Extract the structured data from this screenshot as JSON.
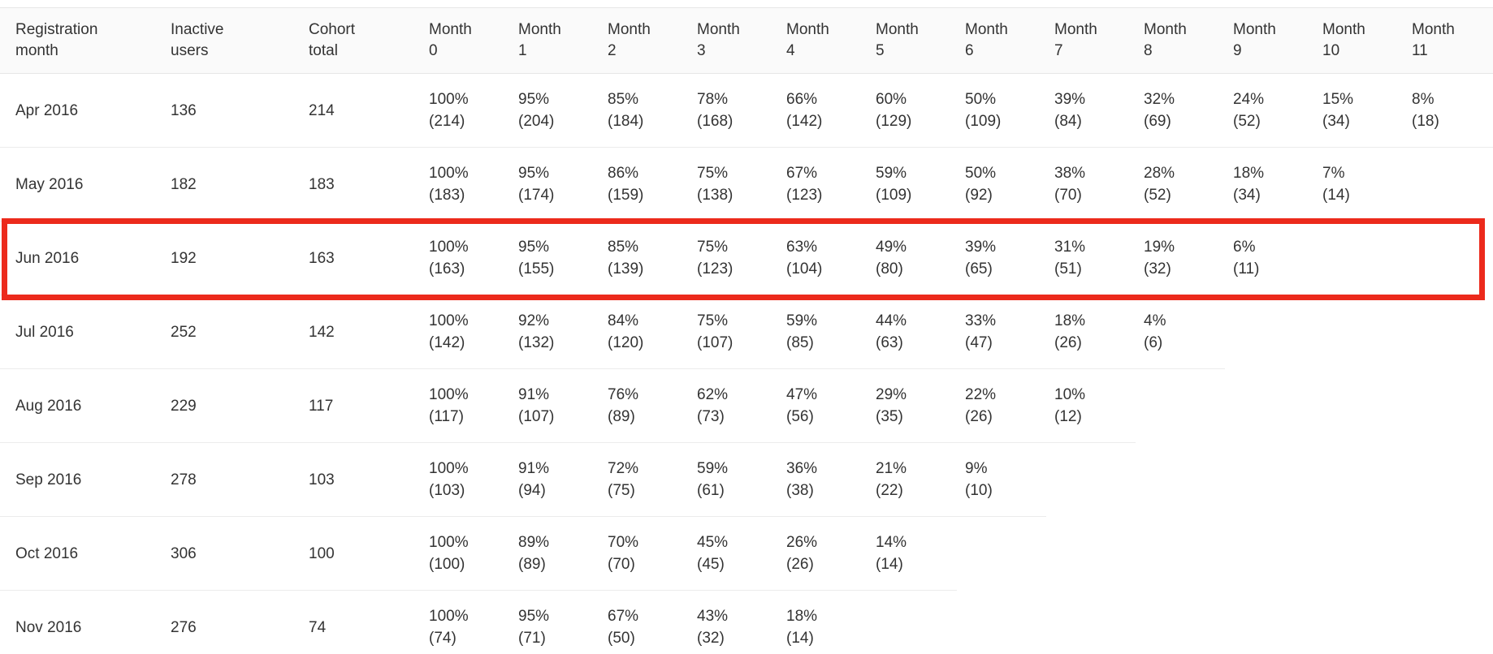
{
  "chart_data": {
    "type": "table",
    "columns": [
      "Registration month",
      "Inactive users",
      "Cohort total",
      "Month 0",
      "Month 1",
      "Month 2",
      "Month 3",
      "Month 4",
      "Month 5",
      "Month 6",
      "Month 7",
      "Month 8",
      "Month 9",
      "Month 10",
      "Month 11"
    ],
    "month_column_count": 12,
    "highlighted_row": "Jun 2016",
    "rows": [
      {
        "registration_month": "Apr 2016",
        "inactive_users": "136",
        "cohort_total": "214",
        "highlighted": false,
        "retention": [
          {
            "pct": "100%",
            "n": "(214)"
          },
          {
            "pct": "95%",
            "n": "(204)"
          },
          {
            "pct": "85%",
            "n": "(184)"
          },
          {
            "pct": "78%",
            "n": "(168)"
          },
          {
            "pct": "66%",
            "n": "(142)"
          },
          {
            "pct": "60%",
            "n": "(129)"
          },
          {
            "pct": "50%",
            "n": "(109)"
          },
          {
            "pct": "39%",
            "n": "(84)"
          },
          {
            "pct": "32%",
            "n": "(69)"
          },
          {
            "pct": "24%",
            "n": "(52)"
          },
          {
            "pct": "15%",
            "n": "(34)"
          },
          {
            "pct": "8%",
            "n": "(18)"
          }
        ]
      },
      {
        "registration_month": "May 2016",
        "inactive_users": "182",
        "cohort_total": "183",
        "highlighted": false,
        "retention": [
          {
            "pct": "100%",
            "n": "(183)"
          },
          {
            "pct": "95%",
            "n": "(174)"
          },
          {
            "pct": "86%",
            "n": "(159)"
          },
          {
            "pct": "75%",
            "n": "(138)"
          },
          {
            "pct": "67%",
            "n": "(123)"
          },
          {
            "pct": "59%",
            "n": "(109)"
          },
          {
            "pct": "50%",
            "n": "(92)"
          },
          {
            "pct": "38%",
            "n": "(70)"
          },
          {
            "pct": "28%",
            "n": "(52)"
          },
          {
            "pct": "18%",
            "n": "(34)"
          },
          {
            "pct": "7%",
            "n": "(14)"
          }
        ]
      },
      {
        "registration_month": "Jun 2016",
        "inactive_users": "192",
        "cohort_total": "163",
        "highlighted": true,
        "retention": [
          {
            "pct": "100%",
            "n": "(163)"
          },
          {
            "pct": "95%",
            "n": "(155)"
          },
          {
            "pct": "85%",
            "n": "(139)"
          },
          {
            "pct": "75%",
            "n": "(123)"
          },
          {
            "pct": "63%",
            "n": "(104)"
          },
          {
            "pct": "49%",
            "n": "(80)"
          },
          {
            "pct": "39%",
            "n": "(65)"
          },
          {
            "pct": "31%",
            "n": "(51)"
          },
          {
            "pct": "19%",
            "n": "(32)"
          },
          {
            "pct": "6%",
            "n": "(11)"
          }
        ]
      },
      {
        "registration_month": "Jul 2016",
        "inactive_users": "252",
        "cohort_total": "142",
        "highlighted": false,
        "retention": [
          {
            "pct": "100%",
            "n": "(142)"
          },
          {
            "pct": "92%",
            "n": "(132)"
          },
          {
            "pct": "84%",
            "n": "(120)"
          },
          {
            "pct": "75%",
            "n": "(107)"
          },
          {
            "pct": "59%",
            "n": "(85)"
          },
          {
            "pct": "44%",
            "n": "(63)"
          },
          {
            "pct": "33%",
            "n": "(47)"
          },
          {
            "pct": "18%",
            "n": "(26)"
          },
          {
            "pct": "4%",
            "n": "(6)"
          }
        ]
      },
      {
        "registration_month": "Aug 2016",
        "inactive_users": "229",
        "cohort_total": "117",
        "highlighted": false,
        "retention": [
          {
            "pct": "100%",
            "n": "(117)"
          },
          {
            "pct": "91%",
            "n": "(107)"
          },
          {
            "pct": "76%",
            "n": "(89)"
          },
          {
            "pct": "62%",
            "n": "(73)"
          },
          {
            "pct": "47%",
            "n": "(56)"
          },
          {
            "pct": "29%",
            "n": "(35)"
          },
          {
            "pct": "22%",
            "n": "(26)"
          },
          {
            "pct": "10%",
            "n": "(12)"
          }
        ]
      },
      {
        "registration_month": "Sep 2016",
        "inactive_users": "278",
        "cohort_total": "103",
        "highlighted": false,
        "retention": [
          {
            "pct": "100%",
            "n": "(103)"
          },
          {
            "pct": "91%",
            "n": "(94)"
          },
          {
            "pct": "72%",
            "n": "(75)"
          },
          {
            "pct": "59%",
            "n": "(61)"
          },
          {
            "pct": "36%",
            "n": "(38)"
          },
          {
            "pct": "21%",
            "n": "(22)"
          },
          {
            "pct": "9%",
            "n": "(10)"
          }
        ]
      },
      {
        "registration_month": "Oct 2016",
        "inactive_users": "306",
        "cohort_total": "100",
        "highlighted": false,
        "retention": [
          {
            "pct": "100%",
            "n": "(100)"
          },
          {
            "pct": "89%",
            "n": "(89)"
          },
          {
            "pct": "70%",
            "n": "(70)"
          },
          {
            "pct": "45%",
            "n": "(45)"
          },
          {
            "pct": "26%",
            "n": "(26)"
          },
          {
            "pct": "14%",
            "n": "(14)"
          }
        ]
      },
      {
        "registration_month": "Nov 2016",
        "inactive_users": "276",
        "cohort_total": "74",
        "highlighted": false,
        "retention": [
          {
            "pct": "100%",
            "n": "(74)"
          },
          {
            "pct": "95%",
            "n": "(71)"
          },
          {
            "pct": "67%",
            "n": "(50)"
          },
          {
            "pct": "43%",
            "n": "(32)"
          },
          {
            "pct": "18%",
            "n": "(14)"
          }
        ]
      }
    ]
  },
  "theme": {
    "header_bg": "#fafafa",
    "header_border": "#e7e7e7",
    "cell_border": "#ececec",
    "text_color": "#333333",
    "highlight_border": "#ec2a1c"
  }
}
